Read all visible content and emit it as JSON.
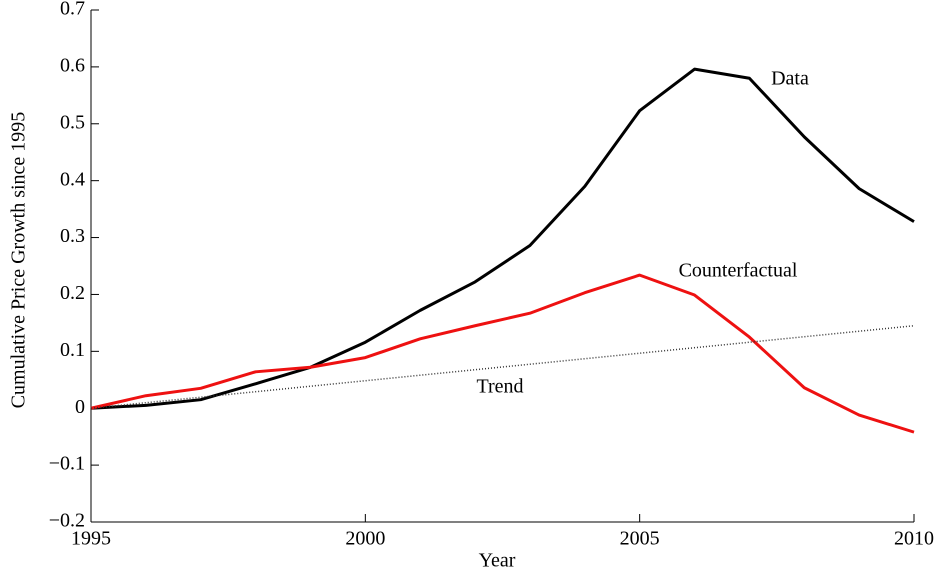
{
  "chart_data": {
    "type": "line",
    "x_label": "Year",
    "y_label": "Cumulative Price Growth since 1995",
    "x": [
      1995,
      1996,
      1997,
      1998,
      1999,
      2000,
      2001,
      2002,
      2003,
      2004,
      2005,
      2006,
      2007,
      2008,
      2009,
      2010
    ],
    "series": [
      {
        "name": "Data",
        "color": "#000000",
        "style": "solid",
        "values": [
          0,
          0.005,
          0.015,
          0.043,
          0.072,
          0.116,
          0.172,
          0.222,
          0.286,
          0.39,
          0.523,
          0.596,
          0.58,
          0.477,
          0.386,
          0.328
        ]
      },
      {
        "name": "Counterfactual",
        "color": "#ee1111",
        "style": "solid",
        "values": [
          0,
          0.022,
          0.035,
          0.064,
          0.072,
          0.089,
          0.122,
          0.145,
          0.167,
          0.203,
          0.234,
          0.199,
          0.125,
          0.036,
          -0.012,
          -0.042
        ]
      },
      {
        "name": "Trend",
        "color": "#333333",
        "style": "dotted",
        "x": [
          1995,
          2010
        ],
        "values": [
          0,
          0.145
        ]
      }
    ],
    "xlim": [
      1995,
      2010
    ],
    "ylim": [
      -0.2,
      0.7
    ],
    "xticks": [
      1995,
      2000,
      2005,
      2010
    ],
    "yticks": [
      {
        "value": -0.2,
        "label": "−0.2"
      },
      {
        "value": -0.1,
        "label": "−0.1"
      },
      0,
      0.1,
      0.2,
      0.3,
      0.4,
      0.5,
      0.6,
      0.7
    ],
    "grid": false
  }
}
